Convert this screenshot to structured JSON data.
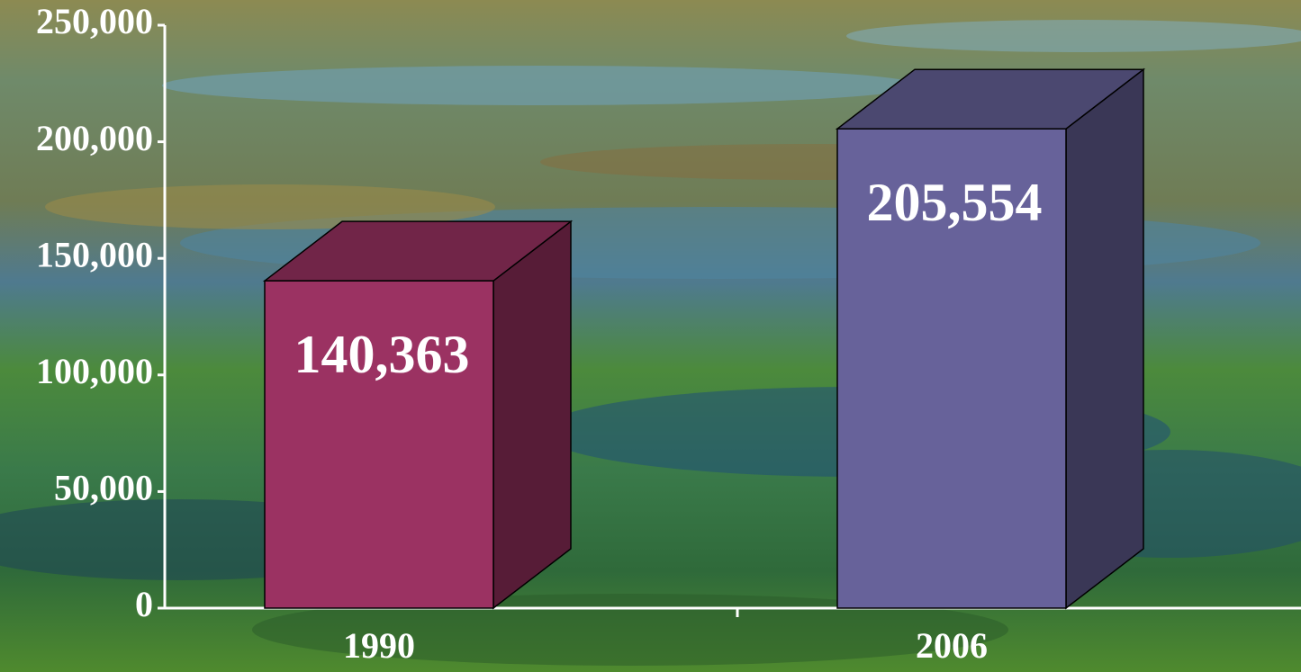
{
  "chart_data": {
    "type": "bar3d",
    "categories": [
      "1990",
      "2006"
    ],
    "values": [
      140363,
      205554
    ],
    "value_labels": [
      "140,363",
      "205,554"
    ],
    "colors": [
      "#9b3262",
      "#67629a"
    ],
    "ylim": [
      0,
      250000
    ],
    "yticks": [
      0,
      {
        "value": 50000,
        "label": "50,000"
      },
      {
        "value": 100000,
        "label": "100,000"
      },
      {
        "value": 150000,
        "label": "150,000"
      },
      {
        "value": 200000,
        "label": "200,000"
      },
      {
        "value": 250000,
        "label": "250,000"
      }
    ],
    "grid": false
  }
}
